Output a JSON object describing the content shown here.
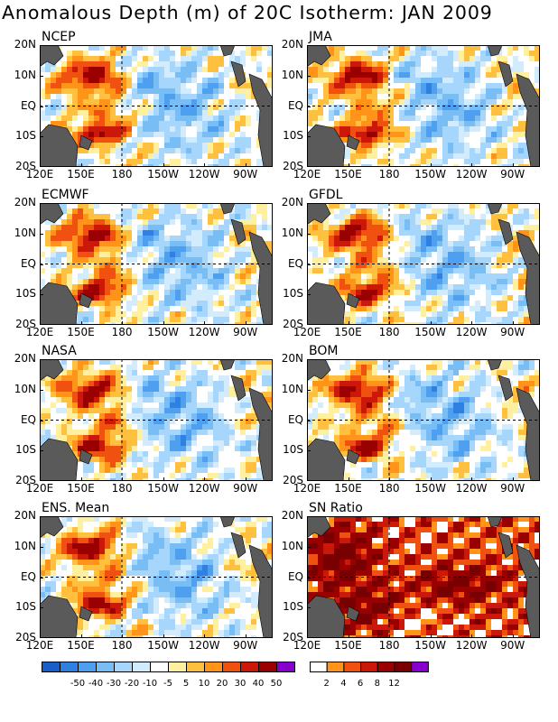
{
  "title": "Anomalous Depth (m) of 20C Isotherm: JAN 2009",
  "panels": [
    {
      "name": "NCEP"
    },
    {
      "name": "JMA"
    },
    {
      "name": "ECMWF"
    },
    {
      "name": "GFDL"
    },
    {
      "name": "NASA"
    },
    {
      "name": "BOM"
    },
    {
      "name": "ENS. Mean"
    },
    {
      "name": "SN Ratio"
    }
  ],
  "axes": {
    "lat_labels": [
      "20N",
      "10N",
      "EQ",
      "10S",
      "20S"
    ],
    "lon_labels": [
      "120E",
      "150E",
      "180",
      "150W",
      "120W",
      "90W"
    ],
    "lon_range_deg_east": [
      120,
      290
    ],
    "lat_range": [
      -20,
      20
    ]
  },
  "legend_anomaly": {
    "labels": [
      "-50",
      "-40",
      "-30",
      "-20",
      "-10",
      "-5",
      "5",
      "10",
      "20",
      "30",
      "40",
      "50"
    ],
    "colors": [
      "#1a5ec8",
      "#2f80e0",
      "#4f9ff0",
      "#79bdf5",
      "#a6d6fb",
      "#d2ebfd",
      "#ffffff",
      "#fff0a0",
      "#ffc040",
      "#ff9418",
      "#f05010",
      "#cc1808",
      "#9a0000",
      "#8800cc"
    ]
  },
  "legend_sn": {
    "labels": [
      "2",
      "4",
      "6",
      "8",
      "12"
    ],
    "colors": [
      "#ffffff",
      "#ff9418",
      "#f05010",
      "#cc1808",
      "#9a0000",
      "#780000",
      "#8800cc"
    ]
  },
  "colors": {
    "land": "#5a5a5a",
    "frame": "#000000",
    "grid": "#000000"
  }
}
